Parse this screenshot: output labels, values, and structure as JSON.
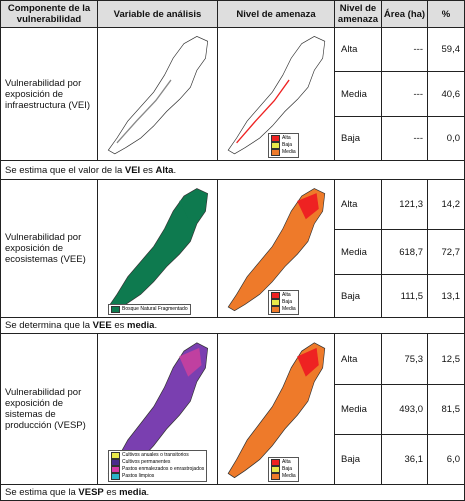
{
  "header": [
    "Componente de la vulnerabilidad",
    "Variable de análisis",
    "Nivel de amenaza",
    "Nivel de amenaza",
    "Área (ha)",
    "%"
  ],
  "sections": [
    {
      "component": "Vulnerabilidad por exposición de infraestructura (VEI)",
      "rows": [
        [
          "Alta",
          "---",
          "59,4"
        ],
        [
          "Media",
          "---",
          "40,6"
        ],
        [
          "Baja",
          "---",
          "0,0"
        ]
      ],
      "legend_variable": [],
      "legend_threat": [
        "Alta",
        "Baja",
        "Media"
      ],
      "note": [
        "Se estima que el valor de la ",
        "VEI",
        " es ",
        "Alta",
        "."
      ]
    },
    {
      "component": "Vulnerabilidad por exposición de ecosistemas (VEE)",
      "rows": [
        [
          "Alta",
          "121,3",
          "14,2"
        ],
        [
          "Media",
          "618,7",
          "72,7"
        ],
        [
          "Baja",
          "111,5",
          "13,1"
        ]
      ],
      "legend_variable": [
        "Bosque Natural Fragmentado"
      ],
      "legend_threat": [
        "Alta",
        "Baja",
        "Media"
      ],
      "note": [
        "Se determina que la ",
        "VEE",
        " es ",
        "media",
        "."
      ]
    },
    {
      "component": "Vulnerabilidad por exposición de sistemas de producción (VESP)",
      "rows": [
        [
          "Alta",
          "75,3",
          "12,5"
        ],
        [
          "Media",
          "493,0",
          "81,5"
        ],
        [
          "Baja",
          "36,1",
          "6,0"
        ]
      ],
      "legend_variable": [
        "Cultivos anuales o transitorios",
        "Cultivos permanentes",
        "Pastos enmalezados o enrastrojados",
        "Pastos limpios"
      ],
      "legend_threat": [
        "Alta",
        "Baja",
        "Media"
      ],
      "note": [
        "Se estima que la ",
        "VESP",
        " es ",
        "media",
        "."
      ]
    }
  ]
}
